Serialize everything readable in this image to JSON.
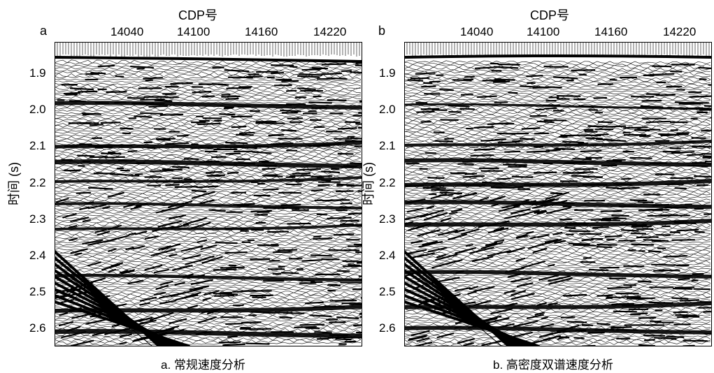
{
  "panels": [
    {
      "letter": "a",
      "x_axis_title": "CDP号",
      "x_ticks": [
        "14040",
        "14100",
        "14160",
        "14220"
      ],
      "y_axis_title": "时间 (s)",
      "y_ticks": [
        "1.9",
        "2.0",
        "2.1",
        "2.2",
        "2.3",
        "2.4",
        "2.5",
        "2.6"
      ],
      "caption": "a. 常规速度分析"
    },
    {
      "letter": "b",
      "x_axis_title": "CDP号",
      "x_ticks": [
        "14040",
        "14100",
        "14160",
        "14220"
      ],
      "y_axis_title": "时间 (s)",
      "y_ticks": [
        "1.9",
        "2.0",
        "2.1",
        "2.2",
        "2.3",
        "2.4",
        "2.5",
        "2.6"
      ],
      "caption": "b. 高密度双谱速度分析"
    }
  ],
  "colors": {
    "ink": "#000000",
    "paper": "#ffffff"
  }
}
